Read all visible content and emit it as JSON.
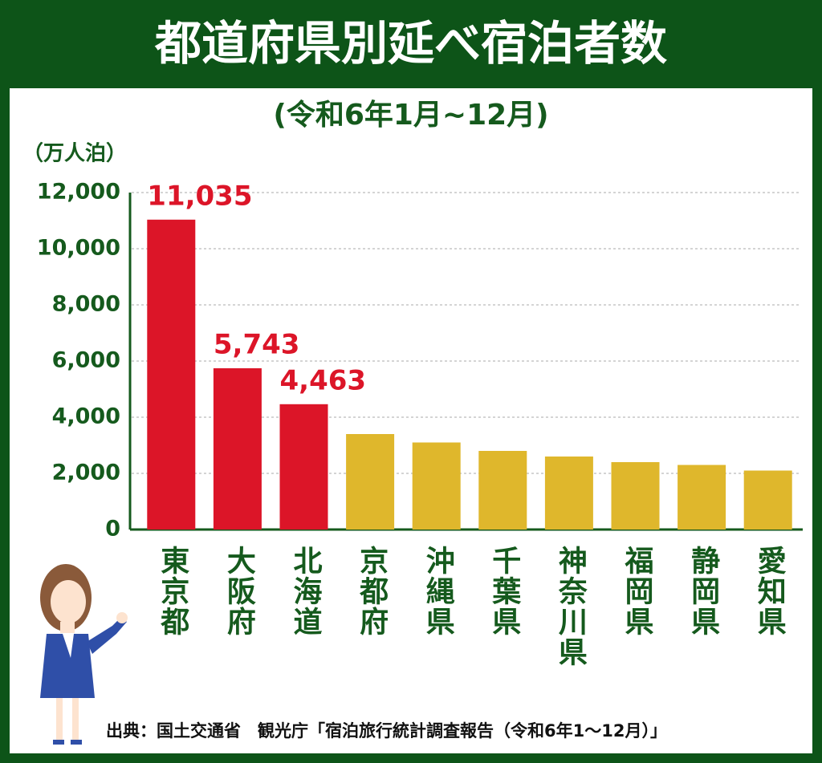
{
  "chart_data": {
    "type": "bar",
    "title": "都道府県別延べ宿泊者数",
    "subtitle": "(令和6年1月~12月)",
    "y_label": "（万人泊）",
    "categories": [
      "東京都",
      "大阪府",
      "北海道",
      "京都府",
      "沖縄県",
      "千葉県",
      "神奈川県",
      "福岡県",
      "静岡県",
      "愛知県"
    ],
    "values": [
      11035,
      5743,
      4463,
      3400,
      3100,
      2800,
      2600,
      2400,
      2300,
      2100
    ],
    "value_labels": [
      "11,035",
      "5,743",
      "4,463",
      null,
      null,
      null,
      null,
      null,
      null,
      null
    ],
    "colors": [
      "#dc1528",
      "#dc1528",
      "#dc1528",
      "#dfb72c",
      "#dfb72c",
      "#dfb72c",
      "#dfb72c",
      "#dfb72c",
      "#dfb72c",
      "#dfb72c"
    ],
    "ylim": [
      0,
      12000
    ],
    "yticks": [
      0,
      {
        "value": 2000,
        "label": "2,000"
      },
      {
        "value": 4000,
        "label": "4,000"
      },
      {
        "value": 6000,
        "label": "6,000"
      },
      {
        "value": 8000,
        "label": "8,000"
      },
      {
        "value": 10000,
        "label": "10,000"
      },
      {
        "value": 12000,
        "label": "12,000"
      }
    ],
    "grid": true,
    "source": "出典：国土交通省　観光庁「宿泊旅行統計調査報告（令和6年1～12月）」"
  }
}
